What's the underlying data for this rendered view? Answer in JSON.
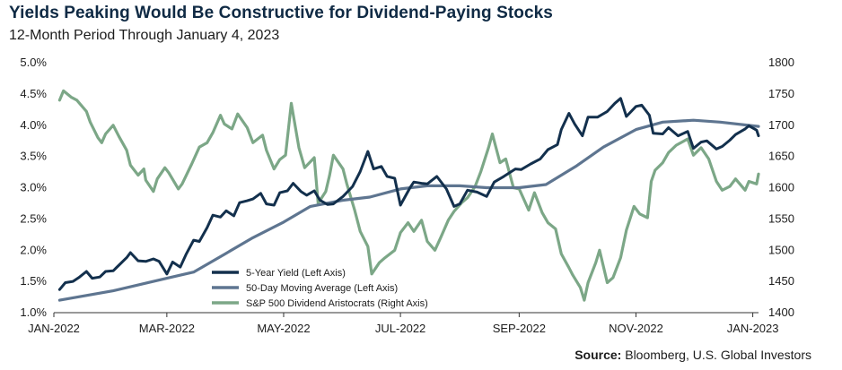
{
  "header": {
    "title": "Yields Peaking Would Be Constructive for Dividend-Paying Stocks",
    "subtitle": "12-Month Period Through January 4, 2023"
  },
  "source": {
    "label": "Source:",
    "text": "Bloomberg, U.S. Global Investors"
  },
  "chart_data": {
    "type": "line",
    "x_range": [
      "2022-01-04",
      "2023-01-04"
    ],
    "x_ticks": [
      {
        "date": "2022-01-01",
        "label": "JAN-2022"
      },
      {
        "date": "2022-03-01",
        "label": "MAR-2022"
      },
      {
        "date": "2022-05-01",
        "label": "MAY-2022"
      },
      {
        "date": "2022-07-01",
        "label": "JUL-2022"
      },
      {
        "date": "2022-09-01",
        "label": "SEP-2022"
      },
      {
        "date": "2022-11-01",
        "label": "NOV-2022"
      },
      {
        "date": "2023-01-01",
        "label": "JAN-2023"
      }
    ],
    "y_left": {
      "range": [
        1.0,
        5.0
      ],
      "ticks": [
        1.0,
        1.5,
        2.0,
        2.5,
        3.0,
        3.5,
        4.0,
        4.5,
        5.0
      ],
      "suffix": "%",
      "decimals": 1
    },
    "y_right": {
      "range": [
        1400,
        1800
      ],
      "ticks": [
        1400,
        1450,
        1500,
        1550,
        1600,
        1650,
        1700,
        1750,
        1800
      ]
    },
    "grid": false,
    "legend_position": "bottom-center",
    "series": [
      {
        "name": "5-Year Yield (Left Axis)",
        "axis": "left",
        "color": "#13304d",
        "points": [
          [
            "2022-01-04",
            1.37
          ],
          [
            "2022-01-07",
            1.48
          ],
          [
            "2022-01-11",
            1.5
          ],
          [
            "2022-01-14",
            1.56
          ],
          [
            "2022-01-18",
            1.66
          ],
          [
            "2022-01-21",
            1.55
          ],
          [
            "2022-01-25",
            1.57
          ],
          [
            "2022-01-28",
            1.66
          ],
          [
            "2022-02-01",
            1.67
          ],
          [
            "2022-02-04",
            1.76
          ],
          [
            "2022-02-08",
            1.88
          ],
          [
            "2022-02-10",
            1.96
          ],
          [
            "2022-02-14",
            1.83
          ],
          [
            "2022-02-18",
            1.82
          ],
          [
            "2022-02-22",
            1.86
          ],
          [
            "2022-02-25",
            1.82
          ],
          [
            "2022-03-01",
            1.62
          ],
          [
            "2022-03-04",
            1.81
          ],
          [
            "2022-03-08",
            1.73
          ],
          [
            "2022-03-11",
            1.93
          ],
          [
            "2022-03-15",
            2.16
          ],
          [
            "2022-03-18",
            2.14
          ],
          [
            "2022-03-22",
            2.36
          ],
          [
            "2022-03-25",
            2.56
          ],
          [
            "2022-03-29",
            2.53
          ],
          [
            "2022-04-01",
            2.63
          ],
          [
            "2022-04-05",
            2.55
          ],
          [
            "2022-04-08",
            2.76
          ],
          [
            "2022-04-12",
            2.79
          ],
          [
            "2022-04-15",
            2.82
          ],
          [
            "2022-04-19",
            2.91
          ],
          [
            "2022-04-22",
            2.74
          ],
          [
            "2022-04-26",
            2.72
          ],
          [
            "2022-04-29",
            2.92
          ],
          [
            "2022-05-03",
            2.95
          ],
          [
            "2022-05-06",
            3.07
          ],
          [
            "2022-05-10",
            2.94
          ],
          [
            "2022-05-13",
            2.88
          ],
          [
            "2022-05-17",
            2.95
          ],
          [
            "2022-05-20",
            2.8
          ],
          [
            "2022-05-24",
            2.73
          ],
          [
            "2022-05-27",
            2.74
          ],
          [
            "2022-06-01",
            2.86
          ],
          [
            "2022-06-06",
            3.02
          ],
          [
            "2022-06-10",
            3.26
          ],
          [
            "2022-06-14",
            3.58
          ],
          [
            "2022-06-17",
            3.3
          ],
          [
            "2022-06-21",
            3.34
          ],
          [
            "2022-06-24",
            3.18
          ],
          [
            "2022-06-28",
            3.15
          ],
          [
            "2022-07-01",
            2.72
          ],
          [
            "2022-07-06",
            3.0
          ],
          [
            "2022-07-08",
            3.09
          ],
          [
            "2022-07-12",
            3.07
          ],
          [
            "2022-07-15",
            3.06
          ],
          [
            "2022-07-20",
            3.18
          ],
          [
            "2022-07-25",
            2.98
          ],
          [
            "2022-07-29",
            2.7
          ],
          [
            "2022-08-01",
            2.74
          ],
          [
            "2022-08-05",
            2.96
          ],
          [
            "2022-08-10",
            2.93
          ],
          [
            "2022-08-15",
            2.86
          ],
          [
            "2022-08-19",
            3.09
          ],
          [
            "2022-08-24",
            3.18
          ],
          [
            "2022-08-30",
            3.3
          ],
          [
            "2022-09-02",
            3.29
          ],
          [
            "2022-09-07",
            3.38
          ],
          [
            "2022-09-12",
            3.46
          ],
          [
            "2022-09-16",
            3.61
          ],
          [
            "2022-09-21",
            3.69
          ],
          [
            "2022-09-23",
            3.93
          ],
          [
            "2022-09-27",
            4.19
          ],
          [
            "2022-09-30",
            4.02
          ],
          [
            "2022-10-04",
            3.83
          ],
          [
            "2022-10-07",
            4.13
          ],
          [
            "2022-10-12",
            4.13
          ],
          [
            "2022-10-17",
            4.22
          ],
          [
            "2022-10-21",
            4.35
          ],
          [
            "2022-10-24",
            4.43
          ],
          [
            "2022-10-27",
            4.14
          ],
          [
            "2022-11-01",
            4.3
          ],
          [
            "2022-11-04",
            4.32
          ],
          [
            "2022-11-08",
            4.16
          ],
          [
            "2022-11-10",
            3.87
          ],
          [
            "2022-11-15",
            3.86
          ],
          [
            "2022-11-18",
            3.96
          ],
          [
            "2022-11-23",
            3.83
          ],
          [
            "2022-11-28",
            3.9
          ],
          [
            "2022-12-01",
            3.63
          ],
          [
            "2022-12-05",
            3.73
          ],
          [
            "2022-12-08",
            3.75
          ],
          [
            "2022-12-13",
            3.62
          ],
          [
            "2022-12-16",
            3.66
          ],
          [
            "2022-12-20",
            3.76
          ],
          [
            "2022-12-23",
            3.85
          ],
          [
            "2022-12-28",
            3.94
          ],
          [
            "2022-12-30",
            3.99
          ],
          [
            "2023-01-03",
            3.92
          ],
          [
            "2023-01-04",
            3.83
          ]
        ]
      },
      {
        "name": "50-Day Moving Average (Left Axis)",
        "axis": "left",
        "color": "#5e7590",
        "points": [
          [
            "2022-01-04",
            1.2
          ],
          [
            "2022-02-01",
            1.35
          ],
          [
            "2022-03-01",
            1.55
          ],
          [
            "2022-03-15",
            1.65
          ],
          [
            "2022-04-01",
            1.95
          ],
          [
            "2022-04-15",
            2.2
          ],
          [
            "2022-05-01",
            2.45
          ],
          [
            "2022-05-15",
            2.7
          ],
          [
            "2022-06-01",
            2.8
          ],
          [
            "2022-06-15",
            2.85
          ],
          [
            "2022-07-01",
            2.98
          ],
          [
            "2022-07-15",
            3.03
          ],
          [
            "2022-08-01",
            3.03
          ],
          [
            "2022-08-15",
            3.0
          ],
          [
            "2022-09-01",
            3.0
          ],
          [
            "2022-09-15",
            3.05
          ],
          [
            "2022-10-01",
            3.35
          ],
          [
            "2022-10-15",
            3.65
          ],
          [
            "2022-11-01",
            3.93
          ],
          [
            "2022-11-15",
            4.05
          ],
          [
            "2022-12-01",
            4.08
          ],
          [
            "2022-12-15",
            4.05
          ],
          [
            "2023-01-04",
            3.98
          ]
        ]
      },
      {
        "name": "S&P 500 Dividend Aristocrats (Right Axis)",
        "axis": "right",
        "color": "#7ca787",
        "points": [
          [
            "2022-01-04",
            1740
          ],
          [
            "2022-01-06",
            1755
          ],
          [
            "2022-01-10",
            1745
          ],
          [
            "2022-01-13",
            1740
          ],
          [
            "2022-01-18",
            1722
          ],
          [
            "2022-01-20",
            1705
          ],
          [
            "2022-01-24",
            1680
          ],
          [
            "2022-01-26",
            1672
          ],
          [
            "2022-01-28",
            1686
          ],
          [
            "2022-02-01",
            1700
          ],
          [
            "2022-02-04",
            1682
          ],
          [
            "2022-02-08",
            1660
          ],
          [
            "2022-02-10",
            1636
          ],
          [
            "2022-02-14",
            1620
          ],
          [
            "2022-02-17",
            1630
          ],
          [
            "2022-02-18",
            1612
          ],
          [
            "2022-02-22",
            1594
          ],
          [
            "2022-02-24",
            1614
          ],
          [
            "2022-02-28",
            1632
          ],
          [
            "2022-03-02",
            1624
          ],
          [
            "2022-03-07",
            1598
          ],
          [
            "2022-03-09",
            1606
          ],
          [
            "2022-03-14",
            1638
          ],
          [
            "2022-03-18",
            1665
          ],
          [
            "2022-03-22",
            1672
          ],
          [
            "2022-03-25",
            1688
          ],
          [
            "2022-03-29",
            1716
          ],
          [
            "2022-03-31",
            1702
          ],
          [
            "2022-04-04",
            1694
          ],
          [
            "2022-04-07",
            1718
          ],
          [
            "2022-04-12",
            1696
          ],
          [
            "2022-04-15",
            1672
          ],
          [
            "2022-04-20",
            1684
          ],
          [
            "2022-04-22",
            1660
          ],
          [
            "2022-04-26",
            1630
          ],
          [
            "2022-04-29",
            1645
          ],
          [
            "2022-05-02",
            1652
          ],
          [
            "2022-05-05",
            1735
          ],
          [
            "2022-05-09",
            1664
          ],
          [
            "2022-05-12",
            1632
          ],
          [
            "2022-05-17",
            1648
          ],
          [
            "2022-05-19",
            1575
          ],
          [
            "2022-05-23",
            1594
          ],
          [
            "2022-05-25",
            1620
          ],
          [
            "2022-05-27",
            1652
          ],
          [
            "2022-06-01",
            1630
          ],
          [
            "2022-06-03",
            1606
          ],
          [
            "2022-06-07",
            1565
          ],
          [
            "2022-06-10",
            1530
          ],
          [
            "2022-06-14",
            1506
          ],
          [
            "2022-06-16",
            1462
          ],
          [
            "2022-06-20",
            1480
          ],
          [
            "2022-06-23",
            1488
          ],
          [
            "2022-06-28",
            1500
          ],
          [
            "2022-07-01",
            1528
          ],
          [
            "2022-07-05",
            1544
          ],
          [
            "2022-07-08",
            1530
          ],
          [
            "2022-07-12",
            1548
          ],
          [
            "2022-07-15",
            1514
          ],
          [
            "2022-07-19",
            1500
          ],
          [
            "2022-07-22",
            1520
          ],
          [
            "2022-07-26",
            1548
          ],
          [
            "2022-07-29",
            1562
          ],
          [
            "2022-08-02",
            1576
          ],
          [
            "2022-08-05",
            1584
          ],
          [
            "2022-08-09",
            1602
          ],
          [
            "2022-08-12",
            1626
          ],
          [
            "2022-08-16",
            1664
          ],
          [
            "2022-08-18",
            1686
          ],
          [
            "2022-08-22",
            1640
          ],
          [
            "2022-08-25",
            1646
          ],
          [
            "2022-08-29",
            1600
          ],
          [
            "2022-09-01",
            1598
          ],
          [
            "2022-09-06",
            1564
          ],
          [
            "2022-09-09",
            1592
          ],
          [
            "2022-09-13",
            1560
          ],
          [
            "2022-09-16",
            1544
          ],
          [
            "2022-09-20",
            1534
          ],
          [
            "2022-09-23",
            1494
          ],
          [
            "2022-09-27",
            1472
          ],
          [
            "2022-09-29",
            1460
          ],
          [
            "2022-10-03",
            1440
          ],
          [
            "2022-10-05",
            1420
          ],
          [
            "2022-10-07",
            1448
          ],
          [
            "2022-10-11",
            1480
          ],
          [
            "2022-10-13",
            1500
          ],
          [
            "2022-10-17",
            1448
          ],
          [
            "2022-10-20",
            1456
          ],
          [
            "2022-10-24",
            1488
          ],
          [
            "2022-10-27",
            1532
          ],
          [
            "2022-10-31",
            1570
          ],
          [
            "2022-11-03",
            1558
          ],
          [
            "2022-11-07",
            1552
          ],
          [
            "2022-11-09",
            1610
          ],
          [
            "2022-11-11",
            1628
          ],
          [
            "2022-11-15",
            1640
          ],
          [
            "2022-11-18",
            1656
          ],
          [
            "2022-11-22",
            1668
          ],
          [
            "2022-11-28",
            1678
          ],
          [
            "2022-12-01",
            1652
          ],
          [
            "2022-12-05",
            1664
          ],
          [
            "2022-12-09",
            1646
          ],
          [
            "2022-12-13",
            1610
          ],
          [
            "2022-12-16",
            1596
          ],
          [
            "2022-12-20",
            1602
          ],
          [
            "2022-12-23",
            1614
          ],
          [
            "2022-12-28",
            1596
          ],
          [
            "2022-12-30",
            1610
          ],
          [
            "2023-01-03",
            1606
          ],
          [
            "2023-01-04",
            1622
          ]
        ]
      }
    ]
  }
}
